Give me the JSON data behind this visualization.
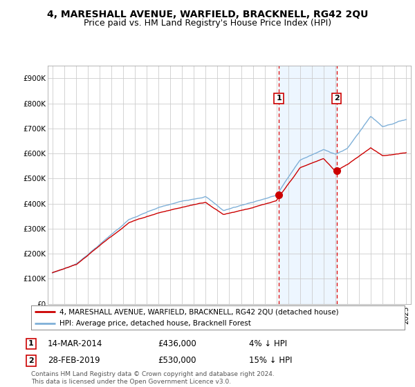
{
  "title": "4, MARESHALL AVENUE, WARFIELD, BRACKNELL, RG42 2QU",
  "subtitle": "Price paid vs. HM Land Registry's House Price Index (HPI)",
  "ylabel_ticks": [
    "£0",
    "£100K",
    "£200K",
    "£300K",
    "£400K",
    "£500K",
    "£600K",
    "£700K",
    "£800K",
    "£900K"
  ],
  "ytick_values": [
    0,
    100000,
    200000,
    300000,
    400000,
    500000,
    600000,
    700000,
    800000,
    900000
  ],
  "ylim": [
    0,
    950000
  ],
  "xlim_left": 1994.6,
  "xlim_right": 2025.4,
  "background_color": "#ffffff",
  "grid_color": "#cccccc",
  "sale1_year": 2014.2,
  "sale1_price": 436000,
  "sale2_year": 2019.1,
  "sale2_price": 530000,
  "vline_color": "#dd0000",
  "highlight_fill": "#ddeeff",
  "highlight_alpha": 0.5,
  "legend_label_red": "4, MARESHALL AVENUE, WARFIELD, BRACKNELL, RG42 2QU (detached house)",
  "legend_label_blue": "HPI: Average price, detached house, Bracknell Forest",
  "annotation1_num": "1",
  "annotation1_date": "14-MAR-2014",
  "annotation1_price": "£436,000",
  "annotation1_hpi": "4% ↓ HPI",
  "annotation2_num": "2",
  "annotation2_date": "28-FEB-2019",
  "annotation2_price": "£530,000",
  "annotation2_hpi": "15% ↓ HPI",
  "footer": "Contains HM Land Registry data © Crown copyright and database right 2024.\nThis data is licensed under the Open Government Licence v3.0.",
  "line_red_color": "#cc0000",
  "line_blue_color": "#7fb0d8",
  "label_box_color": "#cc0000",
  "title_fontsize": 10,
  "subtitle_fontsize": 9,
  "tick_fontsize": 7.5,
  "legend_fontsize": 7.5,
  "annot_fontsize": 8.5,
  "footer_fontsize": 6.5
}
